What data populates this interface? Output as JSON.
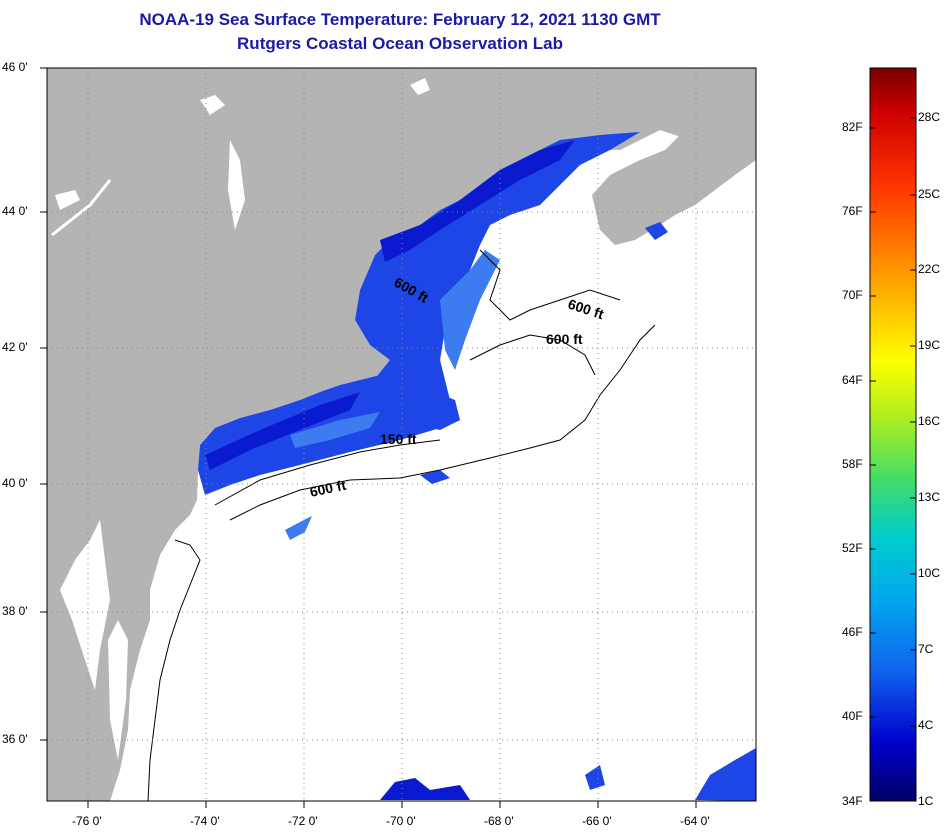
{
  "title": {
    "line1": "NOAA-19 Sea Surface Temperature:  February 12, 2021 1130 GMT",
    "line2": "Rutgers Coastal Ocean Observation Lab"
  },
  "map": {
    "lat_labels": [
      {
        "value": 46,
        "label": "46 0'"
      },
      {
        "value": 44,
        "label": "44 0'"
      },
      {
        "value": 42,
        "label": "42 0'"
      },
      {
        "value": 40,
        "label": "40 0'"
      },
      {
        "value": 38,
        "label": "38 0'"
      },
      {
        "value": 36,
        "label": "36 0'"
      }
    ],
    "lon_labels": [
      {
        "value": -76,
        "label": "-76 0'"
      },
      {
        "value": -74,
        "label": "-74 0'"
      },
      {
        "value": -72,
        "label": "-72 0'"
      },
      {
        "value": -70,
        "label": "-70 0'"
      },
      {
        "value": -68,
        "label": "-68 0'"
      },
      {
        "value": -66,
        "label": "-66 0'"
      },
      {
        "value": -64,
        "label": "-64 0'"
      }
    ],
    "contour_labels": [
      "600 ft",
      "600 ft",
      "600 ft",
      "150 ft",
      "600 ft"
    ],
    "colors": {
      "land": "#b4b4b4",
      "ocean": "#ffffff",
      "sst_deep": "#0a1ad0",
      "sst_mid": "#1e46e6",
      "sst_light": "#3c7cf0",
      "grid": "#888888"
    }
  },
  "colorbar": {
    "fahrenheit": [
      "82F",
      "76F",
      "70F",
      "64F",
      "58F",
      "52F",
      "46F",
      "40F",
      "34F"
    ],
    "celsius": [
      "28C",
      "25C",
      "22C",
      "19C",
      "16C",
      "13C",
      "10C",
      "7C",
      "4C",
      "1C"
    ],
    "gradient": [
      "#7a0000",
      "#cc0000",
      "#ff3300",
      "#ff8800",
      "#ffcc00",
      "#ffff00",
      "#aaee22",
      "#44dd66",
      "#00cccc",
      "#00aaee",
      "#1166ee",
      "#0000cc",
      "#000066"
    ]
  }
}
